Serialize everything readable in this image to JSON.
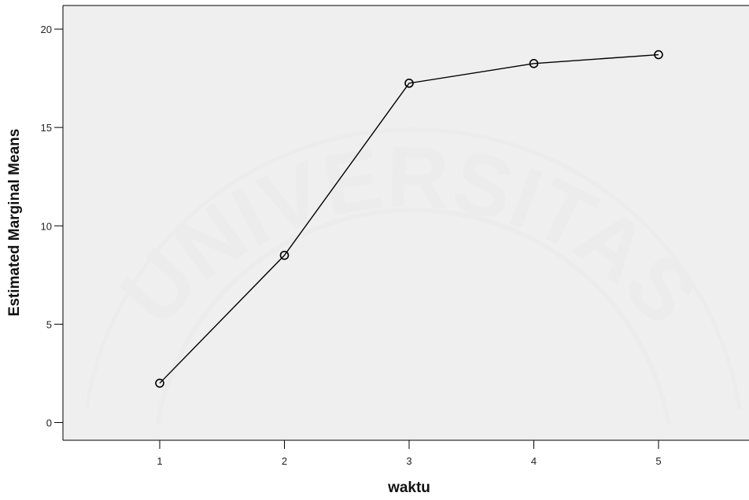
{
  "chart_data": {
    "type": "line",
    "title": "",
    "xlabel": "waktu",
    "ylabel": "Estimated Marginal Means",
    "categories": [
      "1",
      "2",
      "3",
      "4",
      "5"
    ],
    "series": [
      {
        "values": [
          2.0,
          8.5,
          17.25,
          18.25,
          18.7
        ]
      }
    ],
    "ylim": [
      -0.9,
      21.2
    ],
    "yticks": [
      0,
      5,
      10,
      15,
      20
    ],
    "ytick_labels": [
      "0",
      "5",
      "10",
      "15",
      "20"
    ],
    "grid": false,
    "legend": "none",
    "marker": "open-circle",
    "colors": {
      "plot_background": "#efefef",
      "line": "#000000",
      "axis": "#000000"
    }
  },
  "watermark": {
    "text": "UNIVERSITAS",
    "color": "#ececec"
  }
}
